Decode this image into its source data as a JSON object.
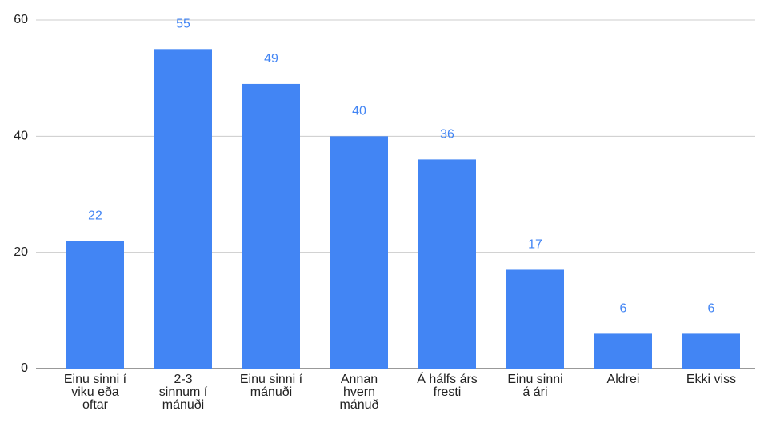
{
  "chart_data": {
    "type": "bar",
    "categories": [
      "Einu sinni í\nviku eða\noftar",
      "2-3\nsinnum í\nmánuði",
      "Einu sinni í\nmánuði",
      "Annan\nhvern\nmánuð",
      "Á hálfs árs\nfresti",
      "Einu sinni\ná ári",
      "Aldrei",
      "Ekki viss"
    ],
    "values": [
      22,
      55,
      49,
      40,
      36,
      17,
      6,
      6
    ],
    "color": "#4285f4",
    "label_color": "#4285f4",
    "ylim": [
      0,
      60
    ],
    "yticks": [
      0,
      20,
      40,
      60
    ],
    "grid": true
  }
}
